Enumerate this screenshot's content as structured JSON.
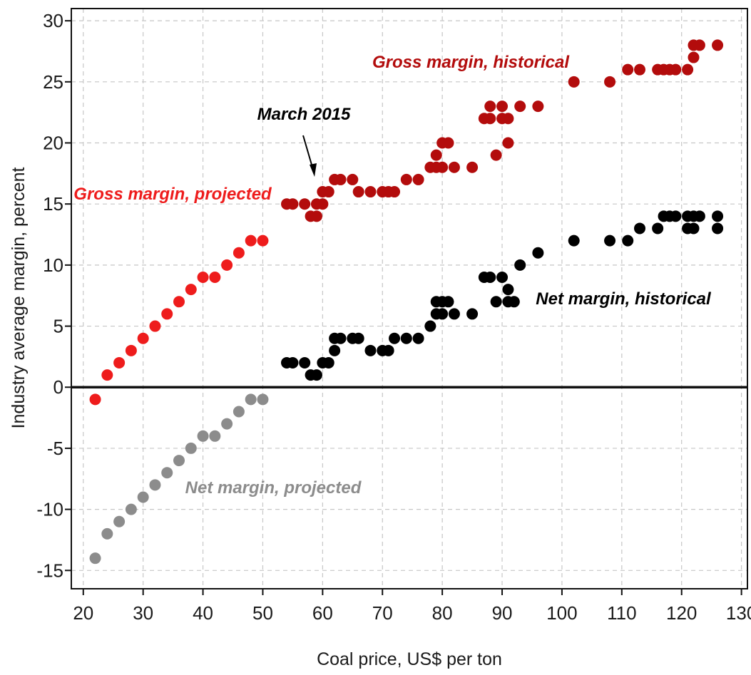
{
  "chart_data": {
    "type": "scatter",
    "title": "",
    "xlabel": "Coal price, US$ per ton",
    "ylabel": "Industry average margin, percent",
    "xlim": [
      18,
      131
    ],
    "ylim": [
      -16.5,
      31
    ],
    "xticks": [
      20,
      30,
      40,
      50,
      60,
      70,
      80,
      90,
      100,
      110,
      120,
      130
    ],
    "yticks": [
      30,
      25,
      20,
      15,
      10,
      5,
      0,
      -5,
      -10,
      -15
    ],
    "grid": true,
    "zero_line": true,
    "series": [
      {
        "name": "Gross margin, historical",
        "color": "#b30c0c",
        "points": [
          [
            54,
            15
          ],
          [
            55,
            15
          ],
          [
            57,
            15
          ],
          [
            58,
            14
          ],
          [
            59,
            14
          ],
          [
            59,
            15
          ],
          [
            60,
            15
          ],
          [
            60,
            16
          ],
          [
            61,
            16
          ],
          [
            62,
            17
          ],
          [
            63,
            17
          ],
          [
            65,
            17
          ],
          [
            66,
            16
          ],
          [
            68,
            16
          ],
          [
            70,
            16
          ],
          [
            71,
            16
          ],
          [
            72,
            16
          ],
          [
            74,
            17
          ],
          [
            76,
            17
          ],
          [
            78,
            18
          ],
          [
            79,
            18
          ],
          [
            79,
            19
          ],
          [
            80,
            18
          ],
          [
            80,
            20
          ],
          [
            81,
            20
          ],
          [
            82,
            18
          ],
          [
            85,
            18
          ],
          [
            87,
            22
          ],
          [
            88,
            22
          ],
          [
            88,
            23
          ],
          [
            89,
            19
          ],
          [
            90,
            23
          ],
          [
            90,
            22
          ],
          [
            91,
            20
          ],
          [
            91,
            22
          ],
          [
            93,
            23
          ],
          [
            96,
            23
          ],
          [
            102,
            25
          ],
          [
            108,
            25
          ],
          [
            111,
            26
          ],
          [
            113,
            26
          ],
          [
            116,
            26
          ],
          [
            117,
            26
          ],
          [
            118,
            26
          ],
          [
            119,
            26
          ],
          [
            121,
            26
          ],
          [
            122,
            27
          ],
          [
            122,
            28
          ],
          [
            123,
            28
          ],
          [
            126,
            28
          ]
        ]
      },
      {
        "name": "Gross margin, projected",
        "color": "#ee1c1c",
        "points": [
          [
            22,
            -1
          ],
          [
            24,
            1
          ],
          [
            26,
            2
          ],
          [
            28,
            3
          ],
          [
            30,
            4
          ],
          [
            32,
            5
          ],
          [
            34,
            6
          ],
          [
            36,
            7
          ],
          [
            38,
            8
          ],
          [
            40,
            9
          ],
          [
            42,
            9
          ],
          [
            44,
            10
          ],
          [
            46,
            11
          ],
          [
            48,
            12
          ],
          [
            50,
            12
          ]
        ]
      },
      {
        "name": "Net margin, historical",
        "color": "#000000",
        "points": [
          [
            54,
            2
          ],
          [
            55,
            2
          ],
          [
            57,
            2
          ],
          [
            58,
            1
          ],
          [
            59,
            1
          ],
          [
            60,
            2
          ],
          [
            61,
            2
          ],
          [
            62,
            3
          ],
          [
            62,
            4
          ],
          [
            63,
            4
          ],
          [
            65,
            4
          ],
          [
            66,
            4
          ],
          [
            68,
            3
          ],
          [
            70,
            3
          ],
          [
            71,
            3
          ],
          [
            72,
            4
          ],
          [
            74,
            4
          ],
          [
            76,
            4
          ],
          [
            78,
            5
          ],
          [
            79,
            6
          ],
          [
            79,
            7
          ],
          [
            80,
            6
          ],
          [
            80,
            7
          ],
          [
            81,
            7
          ],
          [
            82,
            6
          ],
          [
            85,
            6
          ],
          [
            87,
            9
          ],
          [
            88,
            9
          ],
          [
            89,
            7
          ],
          [
            90,
            9
          ],
          [
            91,
            8
          ],
          [
            91,
            7
          ],
          [
            92,
            7
          ],
          [
            93,
            10
          ],
          [
            96,
            11
          ],
          [
            102,
            12
          ],
          [
            108,
            12
          ],
          [
            111,
            12
          ],
          [
            113,
            13
          ],
          [
            116,
            13
          ],
          [
            117,
            14
          ],
          [
            118,
            14
          ],
          [
            119,
            14
          ],
          [
            121,
            14
          ],
          [
            121,
            13
          ],
          [
            122,
            13
          ],
          [
            122,
            14
          ],
          [
            123,
            14
          ],
          [
            126,
            14
          ],
          [
            126,
            13
          ]
        ]
      },
      {
        "name": "Net margin, projected",
        "color": "#8c8c8c",
        "points": [
          [
            22,
            -14
          ],
          [
            24,
            -12
          ],
          [
            26,
            -11
          ],
          [
            28,
            -10
          ],
          [
            30,
            -9
          ],
          [
            32,
            -8
          ],
          [
            34,
            -7
          ],
          [
            36,
            -6
          ],
          [
            38,
            -5
          ],
          [
            40,
            -4
          ],
          [
            42,
            -4
          ],
          [
            44,
            -3
          ],
          [
            46,
            -2
          ],
          [
            48,
            -1
          ],
          [
            50,
            -1
          ]
        ]
      }
    ],
    "annotations": [
      {
        "text": "Gross margin, historical",
        "color": "#b30c0c"
      },
      {
        "text": "Gross margin, projected",
        "color": "#ee1c1c"
      },
      {
        "text": "March 2015",
        "color": "#000000"
      },
      {
        "text": "Net margin, historical",
        "color": "#000000"
      },
      {
        "text": "Net margin, projected",
        "color": "#8c8c8c"
      }
    ]
  }
}
